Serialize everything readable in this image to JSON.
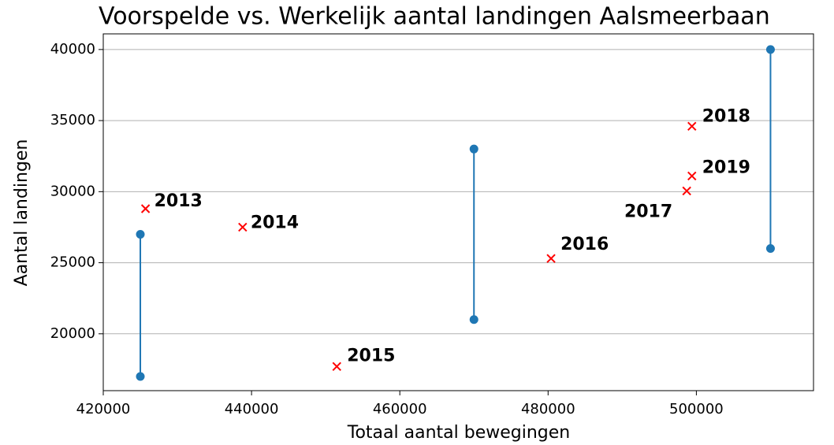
{
  "chart_data": {
    "type": "scatter",
    "title": "Voorspelde vs. Werkelijk aantal landingen Aalsmeerbaan",
    "x_label": "Totaal aantal bewegingen",
    "y_label": "Aantal landingen",
    "ranges": {
      "color": "#1f77b4",
      "x": [
        425000,
        470000,
        510000
      ],
      "low": [
        17000,
        21000,
        26000
      ],
      "high": [
        27000,
        33000,
        40000
      ]
    },
    "points": {
      "color": "#ff0000",
      "x": [
        425700,
        438800,
        451500,
        480400,
        498700,
        499400,
        499400
      ],
      "y": [
        28800,
        27500,
        17700,
        25300,
        30050,
        34600,
        31100
      ],
      "labels": [
        "2013",
        "2014",
        "2015",
        "2016",
        "2017",
        "2018",
        "2019"
      ]
    },
    "xlim": [
      420000,
      515800
    ],
    "ylim": [
      16000,
      41100
    ],
    "xticks": [
      420000,
      440000,
      460000,
      480000,
      500000
    ],
    "yticks": [
      20000,
      25000,
      30000,
      35000,
      40000
    ],
    "grid": "y"
  }
}
